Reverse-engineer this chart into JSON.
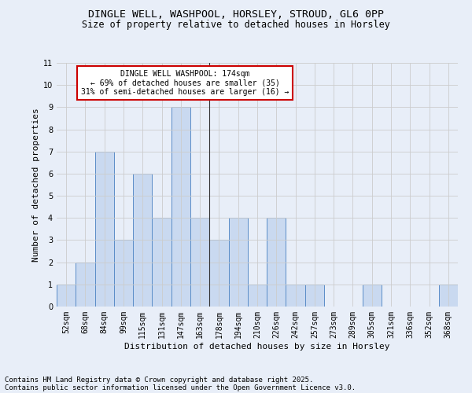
{
  "title1": "DINGLE WELL, WASHPOOL, HORSLEY, STROUD, GL6 0PP",
  "title2": "Size of property relative to detached houses in Horsley",
  "xlabel": "Distribution of detached houses by size in Horsley",
  "ylabel": "Number of detached properties",
  "categories": [
    "52sqm",
    "68sqm",
    "84sqm",
    "99sqm",
    "115sqm",
    "131sqm",
    "147sqm",
    "163sqm",
    "178sqm",
    "194sqm",
    "210sqm",
    "226sqm",
    "242sqm",
    "257sqm",
    "273sqm",
    "289sqm",
    "305sqm",
    "321sqm",
    "336sqm",
    "352sqm",
    "368sqm"
  ],
  "values": [
    1,
    2,
    7,
    3,
    6,
    4,
    9,
    4,
    3,
    4,
    1,
    4,
    1,
    1,
    0,
    0,
    1,
    0,
    0,
    0,
    1
  ],
  "bar_color": "#c9d9f0",
  "bar_edge_color": "#5b8dc8",
  "vline_x": 7.5,
  "annotation_title": "DINGLE WELL WASHPOOL: 174sqm",
  "annotation_line1": "← 69% of detached houses are smaller (35)",
  "annotation_line2": "31% of semi-detached houses are larger (16) →",
  "annotation_box_color": "#ffffff",
  "annotation_box_edge": "#cc0000",
  "vline_color": "#333333",
  "ylim": [
    0,
    11
  ],
  "yticks": [
    0,
    1,
    2,
    3,
    4,
    5,
    6,
    7,
    8,
    9,
    10,
    11
  ],
  "grid_color": "#cccccc",
  "bg_color": "#e8eef8",
  "footnote1": "Contains HM Land Registry data © Crown copyright and database right 2025.",
  "footnote2": "Contains public sector information licensed under the Open Government Licence v3.0.",
  "title_fontsize": 9.5,
  "subtitle_fontsize": 8.5,
  "axis_label_fontsize": 8,
  "tick_fontsize": 7,
  "annot_fontsize": 7,
  "footnote_fontsize": 6.5
}
